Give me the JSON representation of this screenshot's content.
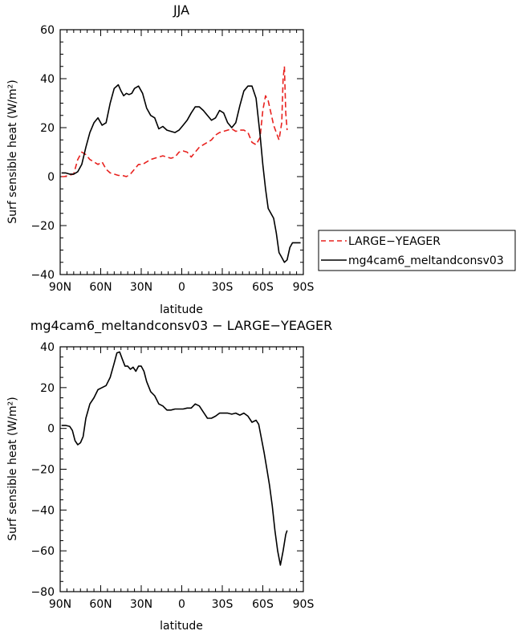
{
  "chart_data": [
    {
      "type": "line",
      "title": "JJA",
      "xlabel": "latitude",
      "ylabel": "Surf sensible heat (W/m²)",
      "xlim": [
        90,
        -90
      ],
      "ylim": [
        -40,
        60
      ],
      "x_ticks": [
        90,
        60,
        30,
        0,
        -30,
        -60,
        -90
      ],
      "x_tick_labels": [
        "90N",
        "60N",
        "30N",
        "0",
        "30S",
        "60S",
        "90S"
      ],
      "y_ticks": [
        -40,
        -20,
        0,
        20,
        40,
        60
      ],
      "y_tick_labels": [
        "−40",
        "−20",
        "0",
        "20",
        "40",
        "60"
      ],
      "legend_position": "right",
      "series": [
        {
          "name": "LARGE−YEAGER",
          "color": "#e8221f",
          "dash": "dashed",
          "x": [
            89,
            87,
            84,
            80,
            77,
            74,
            71,
            68,
            65,
            62,
            59,
            56,
            53,
            50,
            47,
            44,
            41,
            38,
            35,
            32,
            29,
            26,
            23,
            20,
            17,
            14,
            11,
            8,
            5,
            2,
            -1,
            -4,
            -7,
            -10,
            -13,
            -16,
            -19,
            -22,
            -25,
            -28,
            -31,
            -34,
            -37,
            -40,
            -43,
            -46,
            -49,
            -52,
            -55,
            -58,
            -60,
            -62,
            -64,
            -66,
            -68,
            -70,
            -72,
            -74,
            -75,
            -76,
            -77,
            -78
          ],
          "values": [
            0,
            0,
            0.5,
            1,
            7,
            10,
            9,
            7,
            6,
            5,
            6,
            3,
            1.5,
            1,
            0.5,
            0.5,
            0,
            1,
            3,
            5,
            5,
            6,
            7,
            7.5,
            8,
            8.5,
            8,
            7.5,
            8,
            10,
            10.5,
            10,
            8,
            10,
            12,
            13,
            14,
            15,
            17,
            18,
            18.5,
            19,
            19.5,
            18.5,
            19,
            19,
            18,
            14,
            13,
            16,
            27,
            33,
            31,
            26,
            21,
            18,
            15,
            22,
            40,
            45,
            26,
            19
          ]
        },
        {
          "name": "mg4cam6_meltandconsv03",
          "color": "#000000",
          "dash": "solid",
          "x": [
            89,
            86,
            83,
            80,
            77,
            74,
            71,
            68,
            65,
            62,
            59,
            56,
            53,
            50,
            47,
            45,
            43,
            41,
            39,
            37,
            35,
            32,
            29,
            26,
            23,
            20,
            17,
            14,
            11,
            8,
            5,
            2,
            -1,
            -4,
            -7,
            -10,
            -13,
            -16,
            -19,
            -22,
            -25,
            -28,
            -31,
            -34,
            -37,
            -40,
            -43,
            -46,
            -49,
            -52,
            -55,
            -58,
            -60,
            -62,
            -64,
            -66,
            -68,
            -70,
            -72,
            -74,
            -76,
            -78,
            -80,
            -82,
            -84,
            -86,
            -88
          ],
          "values": [
            1.5,
            1.5,
            1,
            1,
            2,
            5,
            12,
            18,
            22,
            24,
            21,
            22,
            30,
            36,
            37.5,
            35,
            33,
            34,
            33.5,
            34,
            36,
            37,
            34,
            28,
            25,
            24,
            19.5,
            20.5,
            19,
            18.5,
            18,
            19,
            21,
            23,
            26,
            28.5,
            28.5,
            27,
            25,
            23,
            24,
            27,
            26,
            22,
            20,
            22,
            29,
            35,
            37,
            37,
            32,
            17,
            5,
            -5,
            -13,
            -15,
            -17,
            -23,
            -31,
            -33,
            -35,
            -34,
            -29,
            -27,
            -27,
            -27,
            -27
          ]
        }
      ]
    },
    {
      "type": "line",
      "title": "mg4cam6_meltandconsv03 − LARGE−YEAGER",
      "xlabel": "latitude",
      "ylabel": "Surf sensible heat (W/m²)",
      "xlim": [
        90,
        -90
      ],
      "ylim": [
        -80,
        40
      ],
      "x_ticks": [
        90,
        60,
        30,
        0,
        -30,
        -60,
        -90
      ],
      "x_tick_labels": [
        "90N",
        "60N",
        "30N",
        "0",
        "30S",
        "60S",
        "90S"
      ],
      "y_ticks": [
        -80,
        -60,
        -40,
        -20,
        0,
        20,
        40
      ],
      "y_tick_labels": [
        "−80",
        "−60",
        "−40",
        "−20",
        "0",
        "20",
        "40"
      ],
      "series": [
        {
          "color": "#000000",
          "dash": "solid",
          "x": [
            89,
            86,
            83,
            81,
            79,
            77,
            75,
            73,
            71,
            68,
            65,
            62,
            59,
            56,
            53,
            50,
            48,
            46,
            44,
            42,
            40,
            38,
            36,
            34,
            32,
            30,
            28,
            26,
            23,
            20,
            17,
            14,
            11,
            8,
            5,
            2,
            -1,
            -4,
            -7,
            -10,
            -13,
            -16,
            -19,
            -22,
            -25,
            -28,
            -31,
            -34,
            -37,
            -40,
            -43,
            -46,
            -49,
            -52,
            -55,
            -57,
            -59,
            -61,
            -63,
            -65,
            -67,
            -69,
            -71,
            -73,
            -75,
            -77,
            -78
          ],
          "values": [
            1.5,
            1.5,
            1,
            -1,
            -6,
            -8,
            -7,
            -4,
            5,
            12,
            15,
            19,
            20,
            21,
            25,
            32,
            37,
            37.5,
            34,
            30.5,
            30.5,
            29,
            30,
            28,
            30.5,
            30.5,
            28,
            23,
            18,
            16,
            12,
            11,
            9,
            9,
            9.5,
            9.5,
            9.5,
            10,
            10,
            12,
            11,
            8,
            5,
            5,
            6,
            7.5,
            7.5,
            7.5,
            7,
            7.5,
            6.5,
            7.5,
            6,
            3,
            4,
            2,
            -5,
            -12,
            -20,
            -28,
            -38,
            -50,
            -60,
            -67,
            -60,
            -52,
            -50
          ]
        }
      ]
    }
  ]
}
